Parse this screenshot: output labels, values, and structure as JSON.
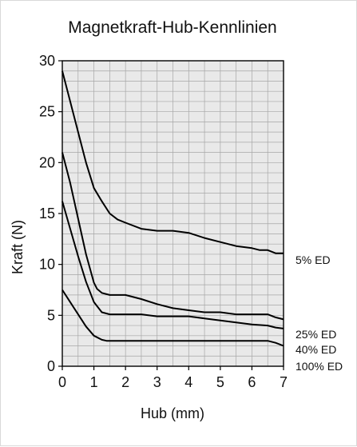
{
  "chart_data": {
    "type": "line",
    "title": "Magnetkraft-Hub-Kennlinien",
    "xlabel": "Hub (mm)",
    "ylabel": "Kraft (N)",
    "xlim": [
      0,
      7
    ],
    "ylim": [
      0,
      30
    ],
    "grid": true,
    "legend": "right",
    "x_ticks": [
      "0",
      "1",
      "2",
      "3",
      "4",
      "5",
      "6",
      "7"
    ],
    "y_ticks": [
      "0",
      "5",
      "10",
      "15",
      "20",
      "25",
      "30"
    ],
    "series": [
      {
        "name": "5% ED",
        "x": [
          0,
          0.25,
          0.5,
          0.75,
          1.0,
          1.25,
          1.5,
          1.75,
          2.0,
          2.5,
          3.0,
          3.5,
          4.0,
          4.5,
          5.0,
          5.5,
          6.0,
          6.25,
          6.5,
          6.75,
          7.0
        ],
        "y": [
          29,
          26,
          23,
          20,
          17.5,
          16.2,
          15,
          14.4,
          14.1,
          13.5,
          13.3,
          13.3,
          13.1,
          12.6,
          12.2,
          11.8,
          11.6,
          11.4,
          11.4,
          11.1,
          11.1
        ]
      },
      {
        "name": "25% ED",
        "x": [
          0,
          0.25,
          0.5,
          0.75,
          1.0,
          1.1,
          1.25,
          1.5,
          2.0,
          2.5,
          3.0,
          3.5,
          4.0,
          4.5,
          5.0,
          5.5,
          6.0,
          6.5,
          6.75,
          7.0
        ],
        "y": [
          21,
          18,
          14.5,
          11,
          8.2,
          7.6,
          7.2,
          7.0,
          7.0,
          6.6,
          6.1,
          5.7,
          5.5,
          5.3,
          5.3,
          5.1,
          5.1,
          5.1,
          4.8,
          4.6
        ]
      },
      {
        "name": "40% ED",
        "x": [
          0,
          0.25,
          0.5,
          0.75,
          1.0,
          1.25,
          1.5,
          2.0,
          2.5,
          3.0,
          3.5,
          4.0,
          4.5,
          5.0,
          5.5,
          6.0,
          6.5,
          6.75,
          7.0
        ],
        "y": [
          16.2,
          13.5,
          10.8,
          8.3,
          6.3,
          5.3,
          5.1,
          5.1,
          5.1,
          4.9,
          4.9,
          4.9,
          4.7,
          4.5,
          4.3,
          4.1,
          4.0,
          3.8,
          3.7
        ]
      },
      {
        "name": "100% ED",
        "x": [
          0,
          0.25,
          0.5,
          0.75,
          1.0,
          1.25,
          1.4,
          1.5,
          2.0,
          3.0,
          4.0,
          5.0,
          6.0,
          6.5,
          6.75,
          7.0
        ],
        "y": [
          7.5,
          6.3,
          5.1,
          3.9,
          3.0,
          2.6,
          2.5,
          2.5,
          2.5,
          2.5,
          2.5,
          2.5,
          2.5,
          2.5,
          2.3,
          2.0
        ]
      }
    ]
  }
}
